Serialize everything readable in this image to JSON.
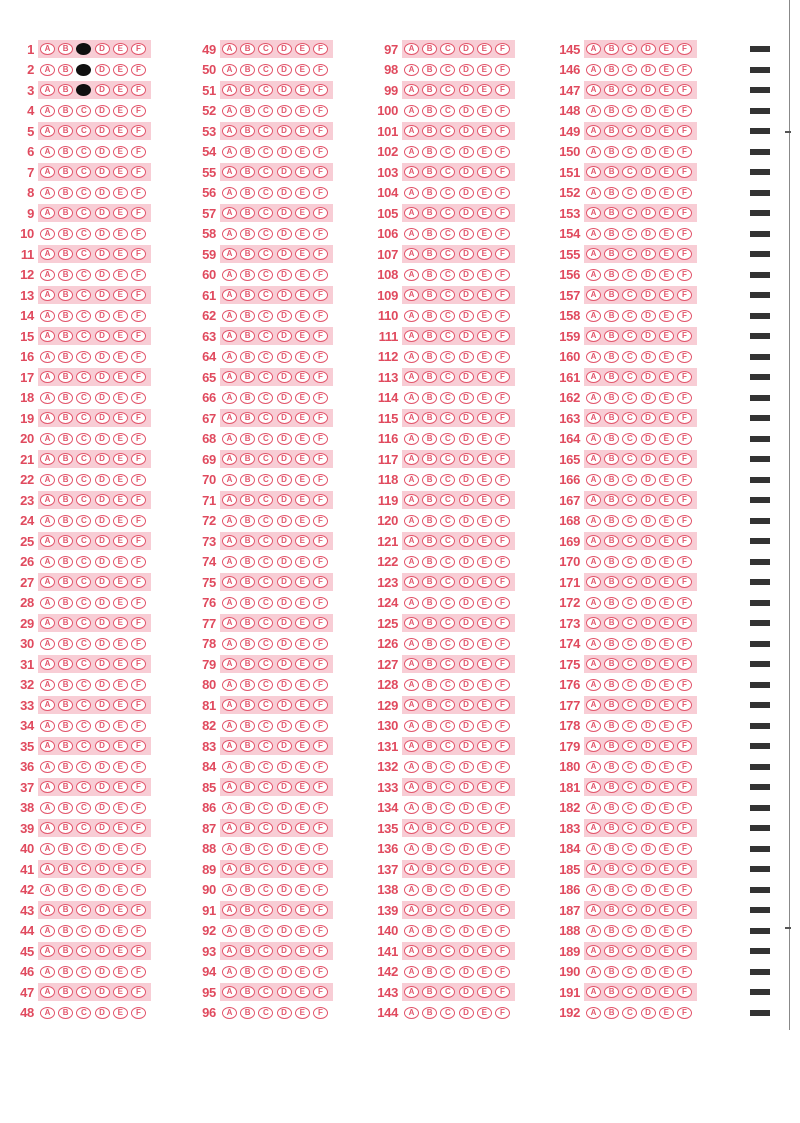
{
  "answer_sheet": {
    "options": [
      "A",
      "B",
      "C",
      "D",
      "E",
      "F"
    ],
    "columns": [
      {
        "start": 1,
        "end": 48
      },
      {
        "start": 49,
        "end": 96
      },
      {
        "start": 97,
        "end": 144
      },
      {
        "start": 145,
        "end": 192
      }
    ],
    "marked_answers": [
      {
        "question": 1,
        "option": "C"
      },
      {
        "question": 2,
        "option": "C"
      },
      {
        "question": 3,
        "option": "C"
      }
    ]
  },
  "colors": {
    "ink": "#e2566c",
    "shade": "#f8cdd5",
    "mark": "#111111",
    "timing": "#333333"
  }
}
